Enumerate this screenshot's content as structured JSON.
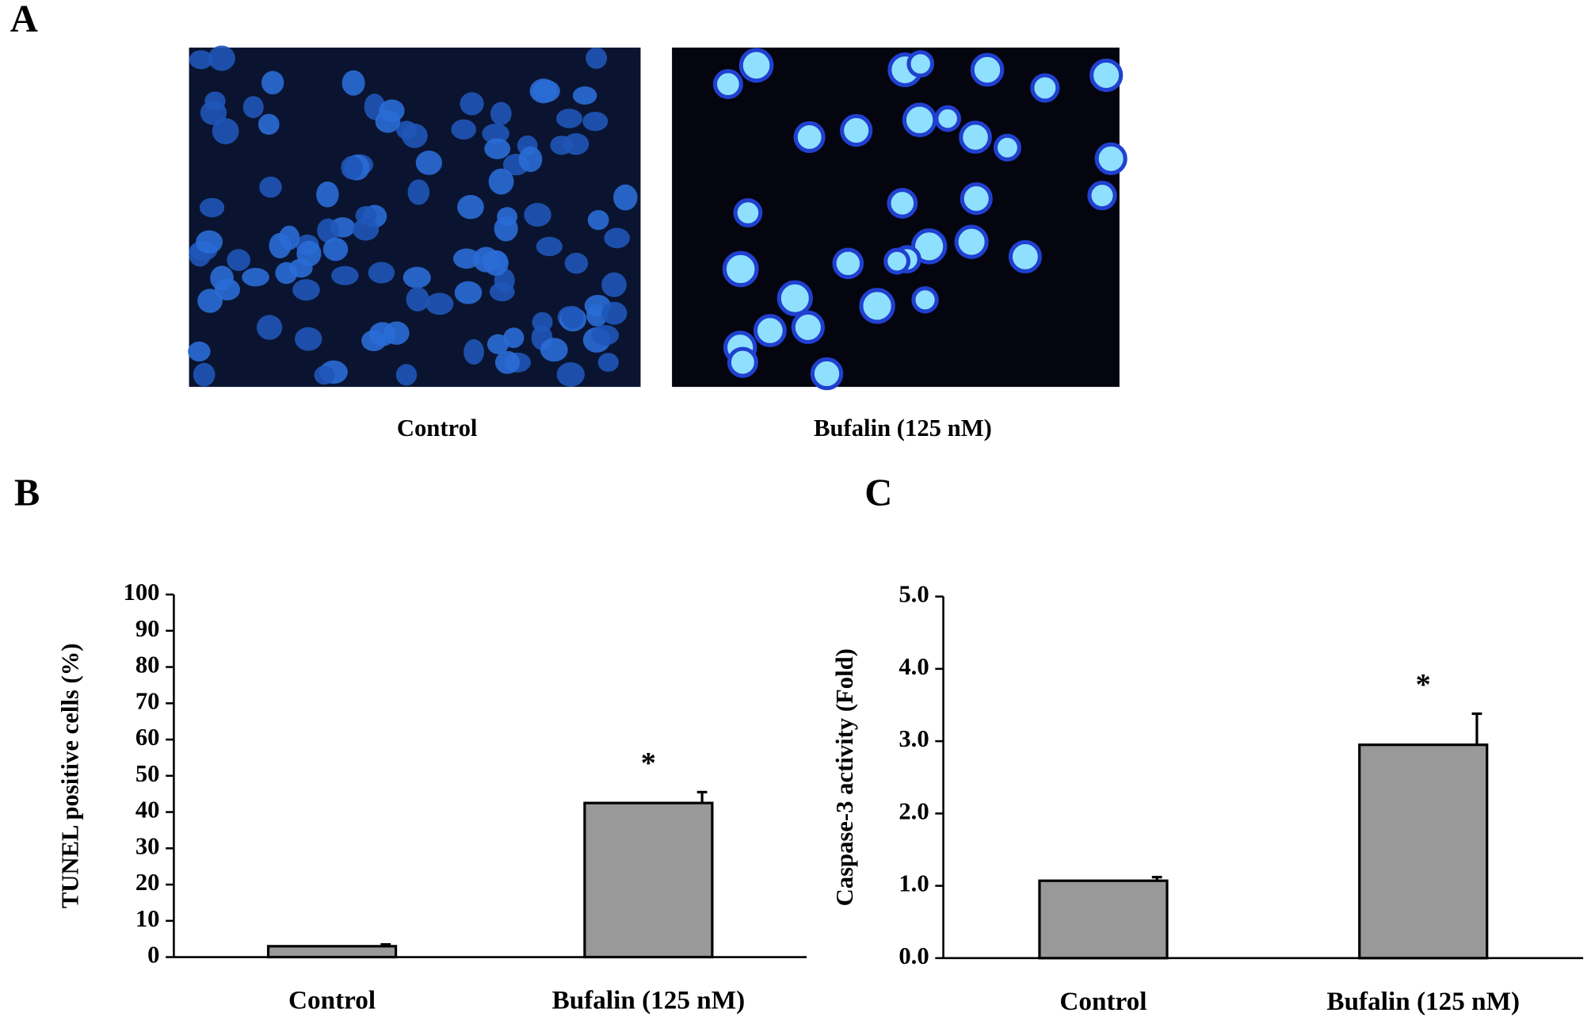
{
  "panel_labels": [
    "A",
    "B",
    "C"
  ],
  "images": [
    {
      "caption": "Control"
    },
    {
      "caption": "Bufalin (125 nM)"
    }
  ],
  "chart_data": [
    {
      "type": "bar",
      "ylabel": "TUNEL positive cells (%)",
      "categories": [
        "Control",
        "Bufalin (125 nM)"
      ],
      "values": [
        3,
        42.5
      ],
      "errors": [
        0.5,
        3
      ],
      "significance": [
        null,
        "*"
      ],
      "color": "#999999",
      "ylim": [
        0,
        100
      ],
      "yticks": [
        0,
        10,
        20,
        30,
        40,
        50,
        60,
        70,
        80,
        90,
        100
      ]
    },
    {
      "type": "bar",
      "ylabel": "Caspase-3 activity (Fold)",
      "categories": [
        "Control",
        "Bufalin (125 nM)"
      ],
      "values": [
        1.07,
        2.95
      ],
      "errors": [
        0.05,
        0.43
      ],
      "significance": [
        null,
        "*"
      ],
      "color": "#999999",
      "ylim": [
        0,
        5
      ],
      "yticks": [
        {
          "value": 0,
          "label": "0.0"
        },
        {
          "value": 1,
          "label": "1.0"
        },
        {
          "value": 2,
          "label": "2.0"
        },
        {
          "value": 3,
          "label": "3.0"
        },
        {
          "value": 4,
          "label": "4.0"
        },
        {
          "value": 5,
          "label": "5.0"
        }
      ]
    }
  ]
}
